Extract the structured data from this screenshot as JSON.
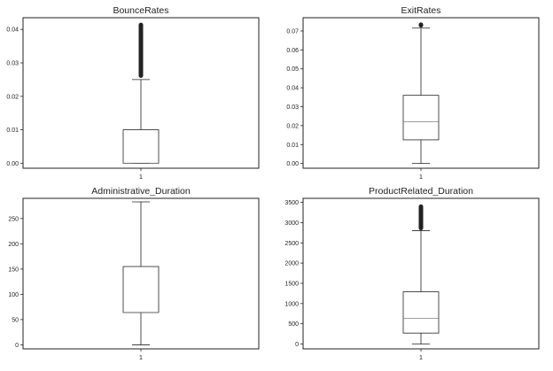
{
  "chart_data": [
    {
      "type": "box",
      "title": "BounceRates",
      "categories": [
        "1"
      ],
      "ylim": [
        -0.0015,
        0.0435
      ],
      "yticks": [
        0.0,
        0.01,
        0.02,
        0.03,
        0.04
      ],
      "ytick_labels": [
        "0.00",
        "0.01",
        "0.02",
        "0.03",
        "0.04"
      ],
      "box": {
        "whisker_low": 0.0,
        "q1": 0.0,
        "median": 0.0,
        "q3": 0.01,
        "whisker_high": 0.025
      },
      "outliers": {
        "from": 0.0255,
        "to": 0.042
      },
      "grid": false
    },
    {
      "type": "box",
      "title": "ExitRates",
      "categories": [
        "1"
      ],
      "ylim": [
        -0.0025,
        0.077
      ],
      "yticks": [
        0.0,
        0.01,
        0.02,
        0.03,
        0.04,
        0.05,
        0.06,
        0.07
      ],
      "ytick_labels": [
        "0.00",
        "0.01",
        "0.02",
        "0.03",
        "0.04",
        "0.05",
        "0.06",
        "0.07"
      ],
      "box": {
        "whisker_low": 0.0,
        "q1": 0.0125,
        "median": 0.022,
        "q3": 0.036,
        "whisker_high": 0.0715
      },
      "outliers": {
        "from": 0.0718,
        "to": 0.0745
      },
      "grid": false
    },
    {
      "type": "box",
      "title": "Administrative_Duration",
      "categories": [
        "1"
      ],
      "ylim": [
        -8,
        290
      ],
      "yticks": [
        0,
        50,
        100,
        150,
        200,
        250
      ],
      "ytick_labels": [
        "0",
        "50",
        "100",
        "150",
        "200",
        "250"
      ],
      "box": {
        "whisker_low": 0,
        "q1": 64,
        "median": 64,
        "q3": 155,
        "whisker_high": 283
      },
      "outliers": null,
      "grid": false
    },
    {
      "type": "box",
      "title": "ProductRelated_Duration",
      "categories": [
        "1"
      ],
      "ylim": [
        -120,
        3600
      ],
      "yticks": [
        0,
        500,
        1000,
        1500,
        2000,
        2500,
        3000,
        3500
      ],
      "ytick_labels": [
        "0",
        "500",
        "1000",
        "1500",
        "2000",
        "2500",
        "3000",
        "3500"
      ],
      "box": {
        "whisker_low": 0,
        "q1": 270,
        "median": 640,
        "q3": 1290,
        "whisker_high": 2800
      },
      "outliers": {
        "from": 2810,
        "to": 3450
      },
      "grid": false
    }
  ]
}
